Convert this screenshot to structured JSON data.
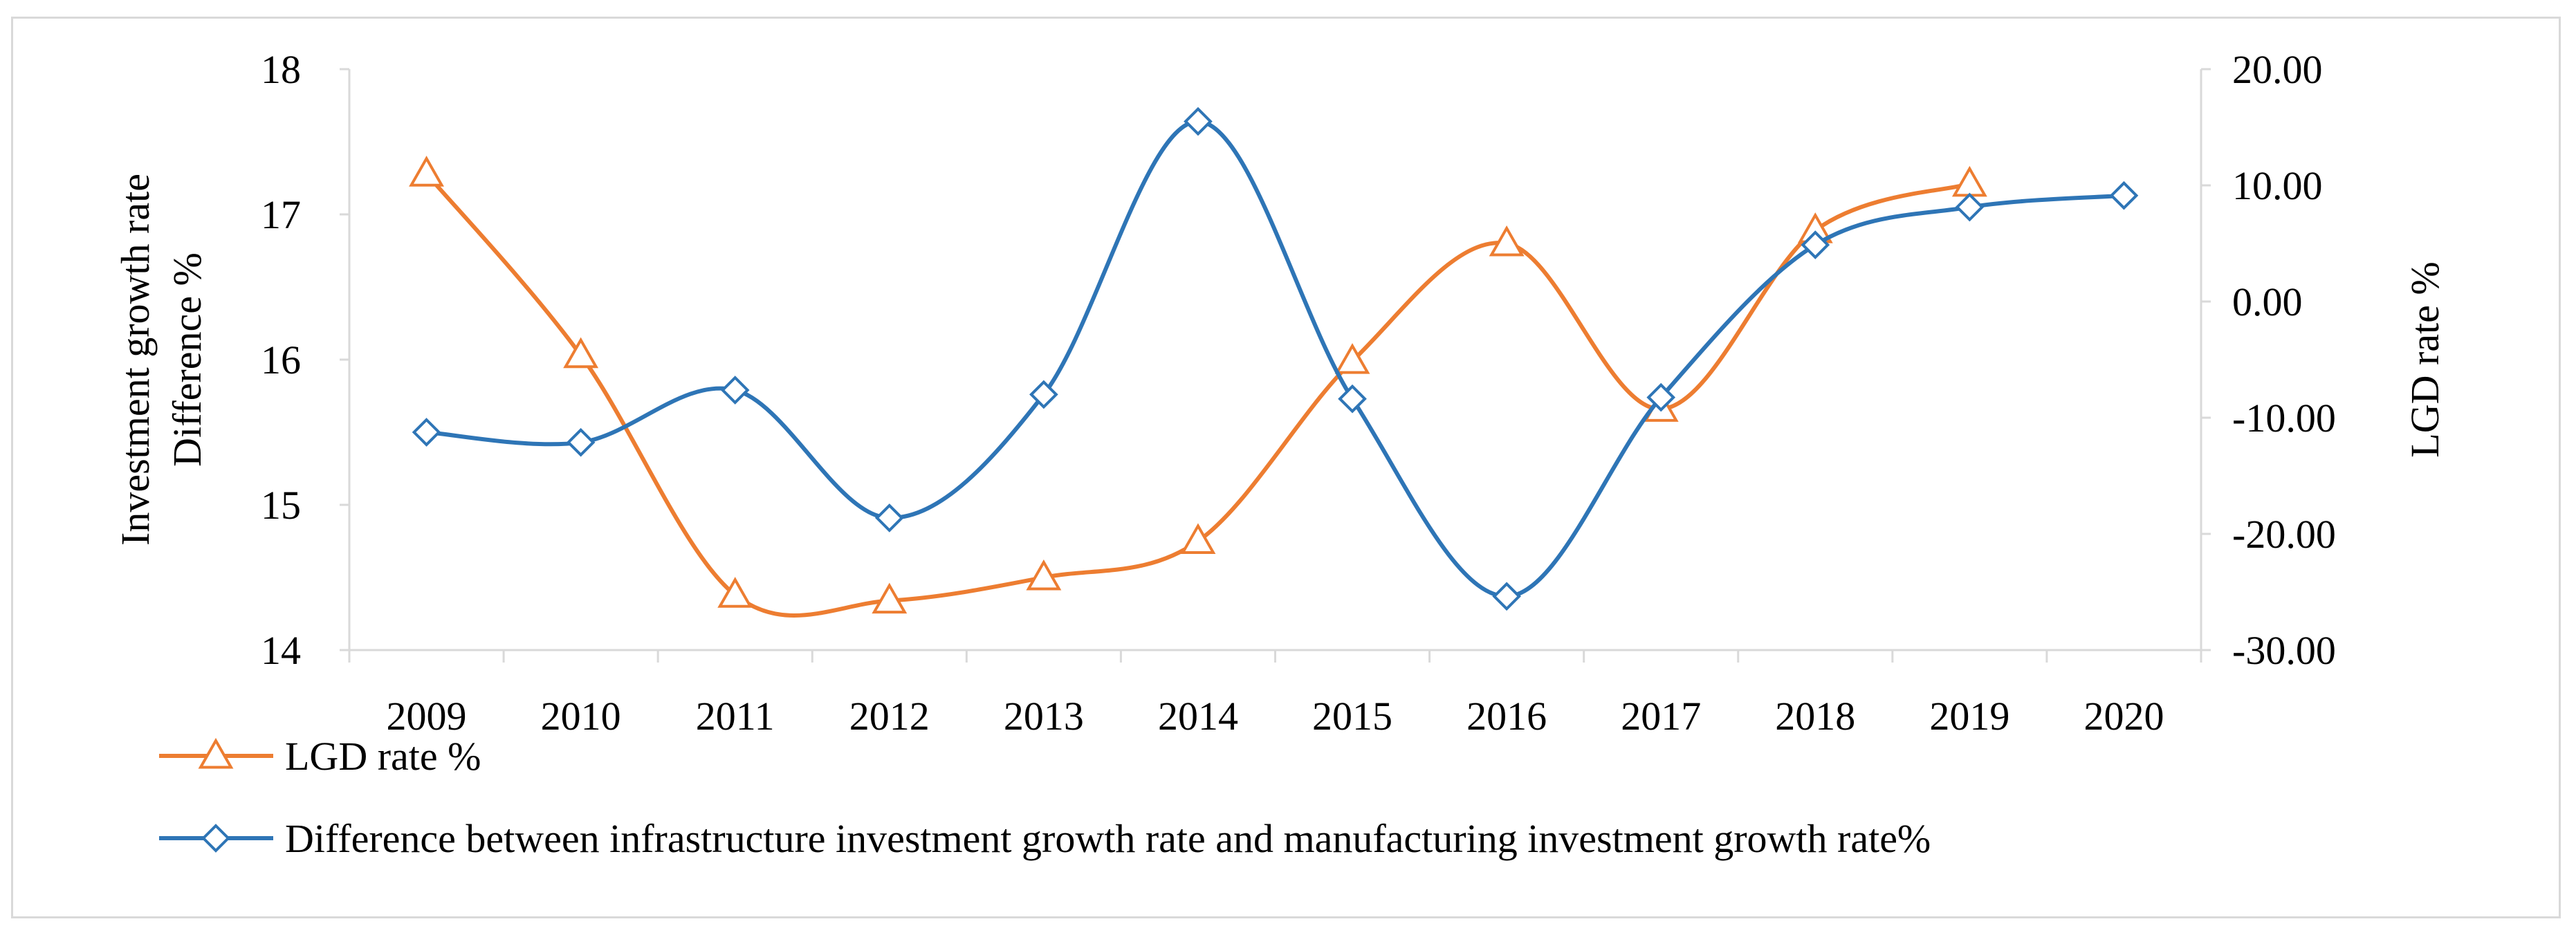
{
  "chart_data": {
    "type": "line",
    "title": "",
    "categories": [
      "2009",
      "2010",
      "2011",
      "2012",
      "2013",
      "2014",
      "2015",
      "2016",
      "2017",
      "2018",
      "2019",
      "2020"
    ],
    "left_axis": {
      "label_lines": [
        "Investment growth rate",
        "Difference %"
      ],
      "ylim": [
        14,
        18
      ],
      "ticks": [
        "14",
        "15",
        "16",
        "17",
        "18"
      ],
      "tick_values": [
        14,
        15,
        16,
        17,
        18
      ]
    },
    "right_axis": {
      "label": "LGD rate %",
      "ylim": [
        -30,
        20
      ],
      "ticks": [
        "-30.00",
        "-20.00",
        "-10.00",
        "0.00",
        "10.00",
        "20.00"
      ],
      "tick_values": [
        -30,
        -20,
        -10,
        0,
        10,
        20
      ]
    },
    "series": [
      {
        "name": "LGD rate  %",
        "axis": "left",
        "color": "#ED7D31",
        "marker": "triangle",
        "values": [
          17.28,
          16.03,
          14.38,
          14.34,
          14.5,
          14.75,
          15.99,
          16.8,
          15.66,
          16.89,
          17.21,
          null
        ]
      },
      {
        "name": "Difference between infrastructure investment growth rate and manufacturing investment growth rate%",
        "axis": "left",
        "color": "#2E75B6",
        "marker": "diamond",
        "values": [
          15.5,
          15.43,
          15.79,
          14.91,
          15.76,
          17.64,
          15.73,
          14.37,
          15.74,
          16.79,
          17.05,
          17.13
        ]
      }
    ],
    "grid": false,
    "legend": "bottom-left"
  }
}
